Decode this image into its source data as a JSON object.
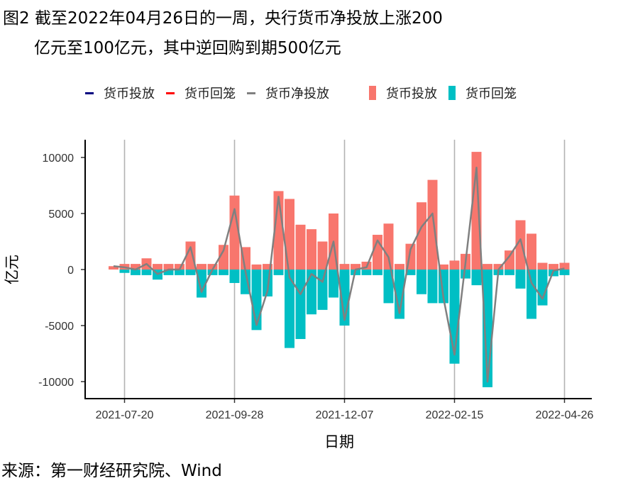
{
  "title_line1": "图2 截至2022年04月26日的一周，央行货币净投放上涨200",
  "title_line2": "亿元至100亿元，其中逆回购到期500亿元",
  "source": "来源：第一财经研究院、Wind",
  "chart_data": {
    "type": "bar",
    "xlabel": "日期",
    "ylabel": "亿元",
    "ylim": [
      -11500,
      11500
    ],
    "yticks": [
      10000,
      5000,
      0,
      -5000,
      -10000
    ],
    "ytick_labels": [
      "10000",
      "5000",
      "0",
      "-5000",
      "-10000"
    ],
    "xtick_labels": [
      "2021-07-20",
      "2021-09-28",
      "2021-12-07",
      "2022-02-15",
      "2022-04-26"
    ],
    "grid": "vertical major gridlines at x ticks",
    "legend_position": "top",
    "legend": [
      {
        "label": "货币投放",
        "kind": "line",
        "color": "#000080"
      },
      {
        "label": "货币回笼",
        "kind": "line",
        "color": "#FF0000"
      },
      {
        "label": "货币净投放",
        "kind": "line",
        "color": "#808080"
      },
      {
        "label": "货币投放",
        "kind": "bar",
        "color": "#F8766D"
      },
      {
        "label": "货币回笼",
        "kind": "bar",
        "color": "#00BFC4"
      }
    ],
    "dates": [
      "2021-07-13",
      "2021-07-20",
      "2021-07-27",
      "2021-08-03",
      "2021-08-10",
      "2021-08-17",
      "2021-08-24",
      "2021-08-31",
      "2021-09-07",
      "2021-09-14",
      "2021-09-21",
      "2021-09-28",
      "2021-10-05",
      "2021-10-12",
      "2021-10-19",
      "2021-10-26",
      "2021-11-02",
      "2021-11-09",
      "2021-11-16",
      "2021-11-23",
      "2021-11-30",
      "2021-12-07",
      "2021-12-14",
      "2021-12-21",
      "2021-12-28",
      "2022-01-04",
      "2022-01-11",
      "2022-01-18",
      "2022-01-25",
      "2022-02-01",
      "2022-02-08",
      "2022-02-15",
      "2022-02-22",
      "2022-03-01",
      "2022-03-08",
      "2022-03-15",
      "2022-03-22",
      "2022-03-29",
      "2022-04-05",
      "2022-04-12",
      "2022-04-19",
      "2022-04-26"
    ],
    "series": [
      {
        "name": "货币投放",
        "type": "bar",
        "color": "#F8766D",
        "values": [
          300,
          500,
          500,
          1000,
          500,
          500,
          500,
          2500,
          500,
          500,
          2200,
          6600,
          2000,
          450,
          500,
          7000,
          6300,
          4000,
          3600,
          2500,
          5000,
          500,
          500,
          700,
          3100,
          4100,
          500,
          2300,
          6000,
          8000,
          450,
          800,
          1400,
          10500,
          500,
          500,
          1700,
          4400,
          3200,
          600,
          500,
          600
        ]
      },
      {
        "name": "货币回笼",
        "type": "bar",
        "color": "#00BFC4",
        "values": [
          0,
          -300,
          -500,
          -500,
          -900,
          -500,
          -500,
          -500,
          -2500,
          -500,
          -500,
          -1200,
          -2200,
          -5400,
          -2400,
          -500,
          -7000,
          -6200,
          -4000,
          -3600,
          -2500,
          -5000,
          -500,
          -500,
          -500,
          -3000,
          -4400,
          -500,
          -2200,
          -3000,
          -3000,
          -8400,
          -800,
          -1400,
          -10500,
          -500,
          -500,
          -1700,
          -4400,
          -3200,
          -600,
          -500
        ]
      },
      {
        "name": "货币净投放",
        "type": "line",
        "color": "#808080",
        "values": [
          300,
          200,
          0,
          500,
          -400,
          0,
          0,
          2000,
          -2000,
          0,
          1700,
          5400,
          -200,
          -4950,
          -1900,
          6500,
          -700,
          -2200,
          -400,
          -1100,
          2500,
          -4500,
          0,
          200,
          2600,
          1100,
          -3900,
          1800,
          3800,
          5000,
          -2550,
          -7600,
          600,
          9100,
          -10000,
          0,
          1200,
          2700,
          -1200,
          -2600,
          -100,
          100
        ]
      }
    ]
  }
}
